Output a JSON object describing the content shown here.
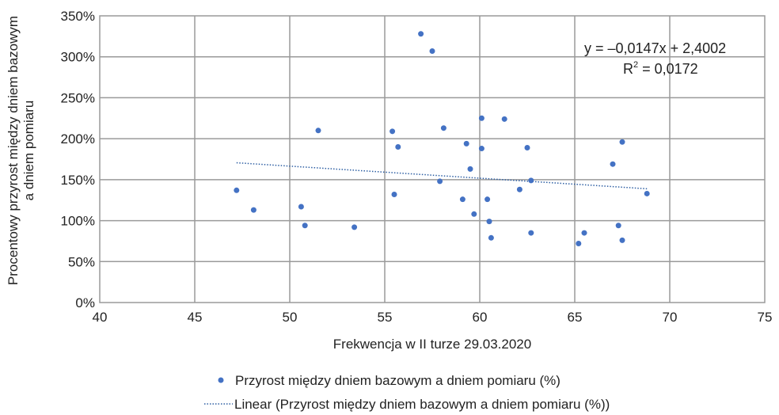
{
  "chart_data": {
    "type": "scatter",
    "xlabel": "Frekwencja w II turze 29.03.2020",
    "ylabel_line1": "Procentowy przyrost między dniem bazowym",
    "ylabel_line2": "a dniem pomiaru",
    "xlim": [
      40,
      75
    ],
    "ylim": [
      0,
      350
    ],
    "x_ticks": [
      "40",
      "45",
      "50",
      "55",
      "60",
      "65",
      "70",
      "75"
    ],
    "y_ticks": [
      "0%",
      "50%",
      "100%",
      "150%",
      "200%",
      "250%",
      "300%",
      "350%"
    ],
    "grid": true,
    "legend_position": "bottom",
    "series": [
      {
        "name": "Przyrost między dniem bazowym a dniem pomiaru (%)",
        "color": "#4472c4",
        "x": [
          47.2,
          48.1,
          50.6,
          50.8,
          51.5,
          53.4,
          55.4,
          55.5,
          55.7,
          56.9,
          57.5,
          57.9,
          58.1,
          59.1,
          59.3,
          59.5,
          59.7,
          60.1,
          60.1,
          60.4,
          60.5,
          60.6,
          61.3,
          62.1,
          62.5,
          62.7,
          62.7,
          65.2,
          65.5,
          67.0,
          67.3,
          67.5,
          67.5,
          68.8
        ],
        "y": [
          137,
          113,
          117,
          94,
          210,
          92,
          209,
          132,
          190,
          328,
          307,
          148,
          213,
          126,
          194,
          163,
          108,
          225,
          188,
          126,
          99,
          79,
          224,
          138,
          189,
          149,
          85,
          72,
          85,
          169,
          94,
          196,
          76,
          133
        ]
      }
    ],
    "trendline": {
      "name": "Linear (Przyrost między dniem bazowym a dniem pomiaru (%))",
      "color": "#2e5fa3",
      "style": "dotted",
      "slope": -0.0147,
      "intercept": 2.4002,
      "x_range": [
        47.2,
        68.8
      ],
      "equation_text": "y = –0,0147x + 2,4002",
      "r2_label": "R",
      "r2_sup": "2",
      "r2_value_text": " = 0,0172"
    }
  }
}
